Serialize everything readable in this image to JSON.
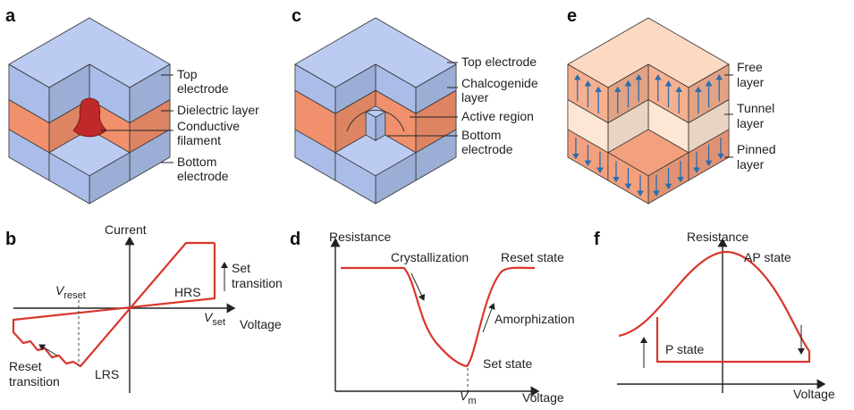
{
  "panel_a": {
    "letter": "a",
    "labels": {
      "top_electrode": [
        "Top",
        "electrode"
      ],
      "dielectric_layer": "Dielectric layer",
      "conductive_filament": [
        "Conductive",
        "filament"
      ],
      "bottom_electrode": [
        "Bottom",
        "electrode"
      ]
    }
  },
  "panel_b": {
    "letter": "b",
    "y_axis": "Current",
    "x_axis": "Voltage",
    "v_reset": {
      "symbol": "V",
      "subscript": "reset"
    },
    "v_set": {
      "symbol": "V",
      "subscript": "set"
    },
    "hrs": "HRS",
    "lrs": "LRS",
    "set_transition": [
      "Set",
      "transition"
    ],
    "reset_transition": [
      "Reset",
      "transition"
    ]
  },
  "panel_c": {
    "letter": "c",
    "labels": {
      "top_electrode": "Top electrode",
      "chalcogenide_layer": [
        "Chalcogenide",
        "layer"
      ],
      "active_region": "Active region",
      "bottom_electrode": [
        "Bottom",
        "electrode"
      ]
    }
  },
  "panel_d": {
    "letter": "d",
    "y_axis": "Resistance",
    "x_axis": "Voltage",
    "crystallization": "Crystallization",
    "reset_state": "Reset state",
    "amorphization": "Amorphization",
    "set_state": "Set state",
    "v_m": {
      "symbol": "V",
      "subscript": "m"
    }
  },
  "panel_e": {
    "letter": "e",
    "labels": {
      "free_layer": [
        "Free",
        "layer"
      ],
      "tunnel_layer": [
        "Tunnel",
        "layer"
      ],
      "pinned_layer": [
        "Pinned",
        "layer"
      ]
    }
  },
  "panel_f": {
    "letter": "f",
    "y_axis": "Resistance",
    "x_axis": "Voltage",
    "ap_state": "AP state",
    "p_state": "P state"
  }
}
